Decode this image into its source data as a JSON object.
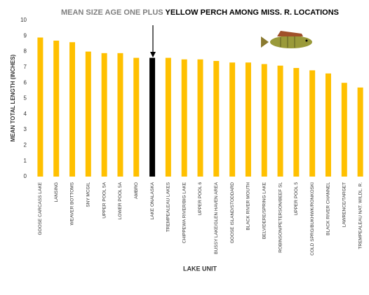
{
  "chart_data": {
    "type": "bar",
    "title": [
      "MEAN SIZE AGE ONE PLUS",
      "YELLOW PERCH AMONG MISS. R. LOCATIONS"
    ],
    "x_label": "LAKE UNIT",
    "y_label": "MEAN TOTAL LENGTH (INCHES)",
    "categories": [
      "GOOSE CARCASS LAKE",
      "LANSING",
      "WEAVER BOTTOMS",
      "SNY MCGIL",
      "UPPER POOL 5A",
      "LOWER POOL 5A",
      "AMBRO",
      "LAKE ONALASKA",
      "TREMPEALEAU LAKES",
      "CHIPPEWA RIVER/BIG LAKE",
      "UPPER POOL 6",
      "BUSSY LAKE/GLEN HAVEN AREA",
      "GOOSE ISLAND/STODDARD",
      "BLACK RIVER MOUTH",
      "BELVIDERE/SPRING LAKE",
      "ROBINSON/PETERSON/BEEF SL",
      "UPPER POOL 5",
      "COLD SPRG/BUKHWK/RONKOSKI",
      "BLACK RIVER CHANNEL",
      "LAWRENCE/TARGET",
      "TREMPEALEAU NAT. WILDL. R."
    ],
    "values": [
      8.9,
      8.7,
      8.6,
      8.0,
      7.9,
      7.9,
      7.6,
      7.6,
      7.6,
      7.5,
      7.5,
      7.4,
      7.3,
      7.3,
      7.2,
      7.1,
      6.95,
      6.8,
      6.6,
      6.0,
      5.7
    ],
    "colors": [
      "#ffc000",
      "#ffc000",
      "#ffc000",
      "#ffc000",
      "#ffc000",
      "#ffc000",
      "#ffc000",
      "#000000",
      "#ffc000",
      "#ffc000",
      "#ffc000",
      "#ffc000",
      "#ffc000",
      "#ffc000",
      "#ffc000",
      "#ffc000",
      "#ffc000",
      "#ffc000",
      "#ffc000",
      "#ffc000",
      "#ffc000"
    ],
    "ylim": [
      0,
      10
    ],
    "yticks": [
      0,
      1,
      2,
      3,
      4,
      5,
      6,
      7,
      8,
      9,
      10
    ],
    "grid": false
  }
}
